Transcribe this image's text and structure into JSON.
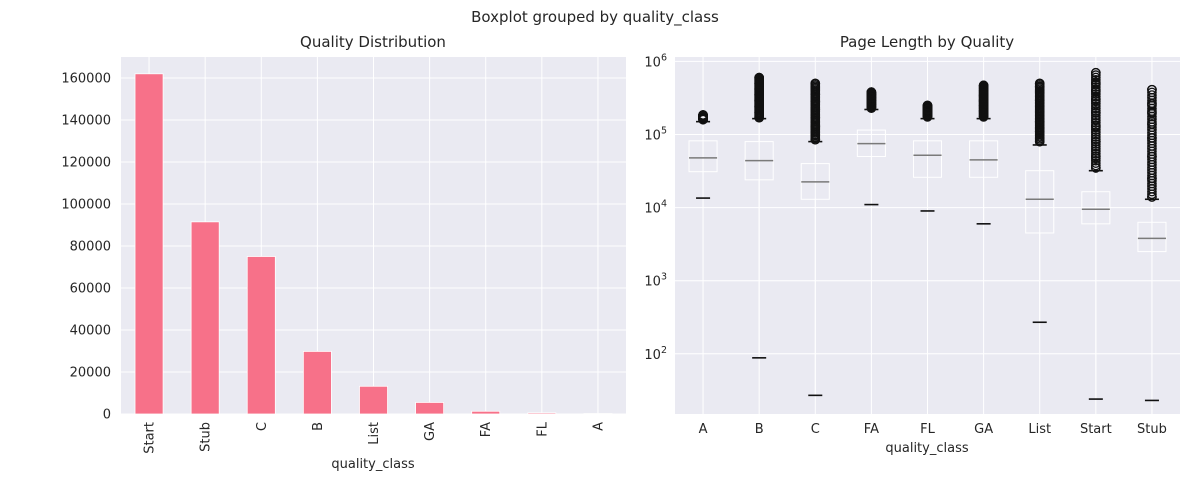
{
  "figure": {
    "suptitle": "Boxplot grouped by quality_class"
  },
  "chart_data": [
    {
      "type": "bar",
      "title": "Quality Distribution",
      "xlabel": "quality_class",
      "ylabel": "",
      "categories": [
        "Start",
        "Stub",
        "C",
        "B",
        "List",
        "GA",
        "FA",
        "FL",
        "A"
      ],
      "values": [
        162000,
        91500,
        75000,
        29800,
        13200,
        5500,
        1300,
        550,
        200
      ],
      "ylim": [
        0,
        170000
      ],
      "yticks": [
        0,
        20000,
        40000,
        60000,
        80000,
        100000,
        120000,
        140000,
        160000
      ],
      "grid": true,
      "color": "#f77189"
    },
    {
      "type": "boxplot",
      "title": "Page Length by Quality",
      "xlabel": "quality_class",
      "ylabel": "",
      "yscale": "log",
      "ylim": [
        15,
        1150000
      ],
      "ytick_labels": [
        "10^2",
        "10^3",
        "10^4",
        "10^5",
        "10^6"
      ],
      "grid": true,
      "categories": [
        "A",
        "B",
        "C",
        "FA",
        "FL",
        "GA",
        "List",
        "Start",
        "Stub"
      ],
      "boxes": [
        {
          "label": "A",
          "min": 13500,
          "q1": 31000,
          "median": 48000,
          "q3": 82000,
          "max": 150000,
          "fliers": [
            160000,
            175000,
            185000
          ]
        },
        {
          "label": "B",
          "min": 88,
          "q1": 24000,
          "median": 44000,
          "q3": 80000,
          "max": 165000,
          "fliers": [
            170000,
            200000,
            240000,
            290000,
            350000,
            420000,
            500000,
            600000
          ]
        },
        {
          "label": "C",
          "min": 27,
          "q1": 13000,
          "median": 22500,
          "q3": 40000,
          "max": 80000,
          "fliers": [
            85000,
            100000,
            130000,
            170000,
            220000,
            280000,
            350000,
            420000,
            500000
          ]
        },
        {
          "label": "FA",
          "min": 11000,
          "q1": 50000,
          "median": 75000,
          "q3": 115000,
          "max": 220000,
          "fliers": [
            230000,
            260000,
            290000,
            320000,
            350000,
            380000
          ]
        },
        {
          "label": "FL",
          "min": 9000,
          "q1": 26000,
          "median": 52000,
          "q3": 82000,
          "max": 165000,
          "fliers": [
            175000,
            195000,
            220000,
            250000
          ]
        },
        {
          "label": "GA",
          "min": 6000,
          "q1": 26000,
          "median": 45000,
          "q3": 82000,
          "max": 165000,
          "fliers": [
            175000,
            210000,
            250000,
            290000,
            340000,
            470000
          ]
        },
        {
          "label": "List",
          "min": 270,
          "q1": 4500,
          "median": 13000,
          "q3": 32000,
          "max": 72000,
          "fliers": [
            80000,
            110000,
            150000,
            210000,
            290000,
            380000,
            450000,
            500000
          ]
        },
        {
          "label": "Start",
          "min": 24,
          "q1": 6000,
          "median": 9500,
          "q3": 16500,
          "max": 32000,
          "fliers": [
            35000,
            50000,
            80000,
            130000,
            200000,
            300000,
            400000,
            500000,
            700000
          ]
        },
        {
          "label": "Stub",
          "min": 23,
          "q1": 2500,
          "median": 3800,
          "q3": 6300,
          "max": 13000,
          "fliers": [
            14000,
            25000,
            50000,
            90000,
            140000,
            200000,
            260000,
            410000
          ]
        }
      ]
    }
  ]
}
